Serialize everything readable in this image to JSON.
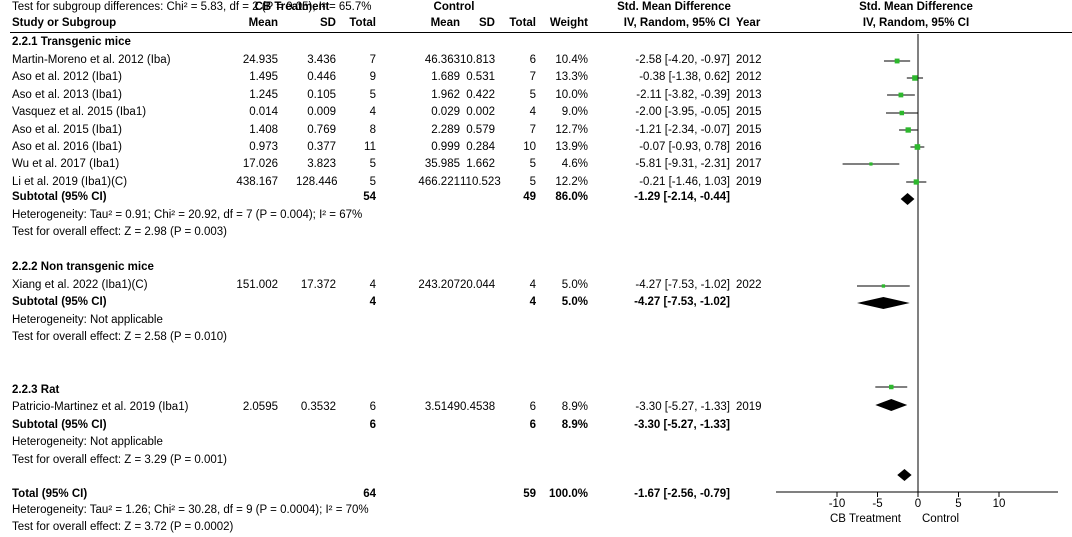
{
  "header": {
    "group_treatment": "CB Treatment",
    "group_control": "Control",
    "smd_title": "Std. Mean Difference",
    "col_study": "Study or Subgroup",
    "col_mean": "Mean",
    "col_sd": "SD",
    "col_total": "Total",
    "col_weight": "Weight",
    "col_method": "IV, Random, 95% CI",
    "col_year": "Year"
  },
  "rows": [
    {
      "kind": "subgroup",
      "label": "2.2.1 Transgenic mice"
    },
    {
      "kind": "study",
      "label": "Martin-Moreno et al. 2012 (Iba)",
      "t_mean": "24.935",
      "t_sd": "3.436",
      "t_total": "7",
      "c_mean": "46.363",
      "c_sd": "10.813",
      "c_total": "6",
      "weight": "10.4%",
      "ci": "-2.58 [-4.20, -0.97]",
      "year": "2012"
    },
    {
      "kind": "study",
      "label": "Aso et al. 2012 (Iba1)",
      "t_mean": "1.495",
      "t_sd": "0.446",
      "t_total": "9",
      "c_mean": "1.689",
      "c_sd": "0.531",
      "c_total": "7",
      "weight": "13.3%",
      "ci": "-0.38 [-1.38, 0.62]",
      "year": "2012"
    },
    {
      "kind": "study",
      "label": "Aso et al. 2013 (Iba1)",
      "t_mean": "1.245",
      "t_sd": "0.105",
      "t_total": "5",
      "c_mean": "1.962",
      "c_sd": "0.422",
      "c_total": "5",
      "weight": "10.0%",
      "ci": "-2.11 [-3.82, -0.39]",
      "year": "2013"
    },
    {
      "kind": "study",
      "label": "Vasquez et al. 2015 (Iba1)",
      "t_mean": "0.014",
      "t_sd": "0.009",
      "t_total": "4",
      "c_mean": "0.029",
      "c_sd": "0.002",
      "c_total": "4",
      "weight": "9.0%",
      "ci": "-2.00 [-3.95, -0.05]",
      "year": "2015"
    },
    {
      "kind": "study",
      "label": "Aso et al. 2015 (Iba1)",
      "t_mean": "1.408",
      "t_sd": "0.769",
      "t_total": "8",
      "c_mean": "2.289",
      "c_sd": "0.579",
      "c_total": "7",
      "weight": "12.7%",
      "ci": "-1.21 [-2.34, -0.07]",
      "year": "2015"
    },
    {
      "kind": "study",
      "label": "Aso et al. 2016 (Iba1)",
      "t_mean": "0.973",
      "t_sd": "0.377",
      "t_total": "11",
      "c_mean": "0.999",
      "c_sd": "0.284",
      "c_total": "10",
      "weight": "13.9%",
      "ci": "-0.07 [-0.93, 0.78]",
      "year": "2016"
    },
    {
      "kind": "study",
      "label": "Wu et al. 2017 (Iba1)",
      "t_mean": "17.026",
      "t_sd": "3.823",
      "t_total": "5",
      "c_mean": "35.985",
      "c_sd": "1.662",
      "c_total": "5",
      "weight": "4.6%",
      "ci": "-5.81 [-9.31, -2.31]",
      "year": "2017"
    },
    {
      "kind": "study",
      "label": "Li et al. 2019 (Iba1)(C)",
      "t_mean": "438.167",
      "t_sd": "128.446",
      "t_total": "5",
      "c_mean": "466.221",
      "c_sd": "110.523",
      "c_total": "5",
      "weight": "12.2%",
      "ci": "-0.21 [-1.46, 1.03]",
      "year": "2019"
    },
    {
      "kind": "subtotal",
      "label": "Subtotal (95% CI)",
      "t_total": "54",
      "c_total": "49",
      "weight": "86.0%",
      "ci": "-1.29 [-2.14, -0.44]"
    },
    {
      "kind": "note",
      "label": "Heterogeneity: Tau² = 0.91; Chi² = 20.92, df = 7 (P = 0.004); I² = 67%"
    },
    {
      "kind": "note",
      "label": "Test for overall effect: Z = 2.98 (P = 0.003)"
    },
    {
      "kind": "blank"
    },
    {
      "kind": "subgroup",
      "label": "2.2.2 Non transgenic mice"
    },
    {
      "kind": "study",
      "label": "Xiang et al. 2022 (Iba1)(C)",
      "t_mean": "151.002",
      "t_sd": "17.372",
      "t_total": "4",
      "c_mean": "243.207",
      "c_sd": "20.044",
      "c_total": "4",
      "weight": "5.0%",
      "ci": "-4.27 [-7.53, -1.02]",
      "year": "2022"
    },
    {
      "kind": "subtotal",
      "label": "Subtotal (95% CI)",
      "t_total": "4",
      "c_total": "4",
      "weight": "5.0%",
      "ci": "-4.27 [-7.53, -1.02]"
    },
    {
      "kind": "note",
      "label": "Heterogeneity: Not applicable"
    },
    {
      "kind": "note",
      "label": "Test for overall effect: Z = 2.58 (P = 0.010)"
    },
    {
      "kind": "blank"
    },
    {
      "kind": "subgroup",
      "label": "2.2.3 Rat"
    },
    {
      "kind": "study",
      "label": "Patricio-Martinez et al. 2019 (Iba1)",
      "t_mean": "2.0595",
      "t_sd": "0.3532",
      "t_total": "6",
      "c_mean": "3.5149",
      "c_sd": "0.4538",
      "c_total": "6",
      "weight": "8.9%",
      "ci": "-3.30 [-5.27, -1.33]",
      "year": "2019"
    },
    {
      "kind": "subtotal",
      "label": "Subtotal (95% CI)",
      "t_total": "6",
      "c_total": "6",
      "weight": "8.9%",
      "ci": "-3.30 [-5.27, -1.33]"
    },
    {
      "kind": "note",
      "label": "Heterogeneity: Not applicable"
    },
    {
      "kind": "note",
      "label": "Test for overall effect: Z = 3.29 (P = 0.001)"
    },
    {
      "kind": "blank"
    },
    {
      "kind": "total",
      "label": "Total (95% CI)",
      "t_total": "64",
      "c_total": "59",
      "weight": "100.0%",
      "ci": "-1.67 [-2.56, -0.79]"
    },
    {
      "kind": "note",
      "label": "Heterogeneity: Tau² = 1.26; Chi² = 30.28, df = 9 (P = 0.0004); I² = 70%"
    },
    {
      "kind": "note",
      "label": "Test for overall effect: Z = 3.72 (P = 0.0002)"
    },
    {
      "kind": "note",
      "label": "Test for subgroup differences: Chi² = 5.83, df = 2 (P = 0.05), I² = 65.7%"
    }
  ],
  "chart_data": {
    "type": "forest",
    "title": "Std. Mean Difference",
    "subtitle": "IV, Random, 95% CI",
    "xlim": [
      -10,
      10
    ],
    "ticks": [
      -10,
      -5,
      0,
      5,
      10
    ],
    "tick_labels": [
      "-10",
      "-5",
      "0",
      "5",
      "10"
    ],
    "left_label": "CB Treatment",
    "right_label": "Control",
    "grid": false,
    "marker_color": "#2db82d",
    "diamond_color": "#000000",
    "studies": [
      {
        "label": "Martin-Moreno et al. 2012 (Iba)",
        "est": -2.58,
        "lo": -4.2,
        "hi": -0.97,
        "weight": 10.4
      },
      {
        "label": "Aso et al. 2012 (Iba1)",
        "est": -0.38,
        "lo": -1.38,
        "hi": 0.62,
        "weight": 13.3
      },
      {
        "label": "Aso et al. 2013 (Iba1)",
        "est": -2.11,
        "lo": -3.82,
        "hi": -0.39,
        "weight": 10.0
      },
      {
        "label": "Vasquez et al. 2015 (Iba1)",
        "est": -2.0,
        "lo": -3.95,
        "hi": -0.05,
        "weight": 9.0
      },
      {
        "label": "Aso et al. 2015 (Iba1)",
        "est": -1.21,
        "lo": -2.34,
        "hi": -0.07,
        "weight": 12.7
      },
      {
        "label": "Aso et al. 2016 (Iba1)",
        "est": -0.07,
        "lo": -0.93,
        "hi": 0.78,
        "weight": 13.9
      },
      {
        "label": "Wu et al. 2017 (Iba1)",
        "est": -5.81,
        "lo": -9.31,
        "hi": -2.31,
        "weight": 4.6
      },
      {
        "label": "Li et al. 2019 (Iba1)(C)",
        "est": -0.21,
        "lo": -1.46,
        "hi": 1.03,
        "weight": 12.2
      },
      {
        "label": "Xiang et al. 2022 (Iba1)(C)",
        "est": -4.27,
        "lo": -7.53,
        "hi": -1.02,
        "weight": 5.0
      },
      {
        "label": "Patricio-Martinez et al. 2019 (Iba1)",
        "est": -3.3,
        "lo": -5.27,
        "hi": -1.33,
        "weight": 8.9
      }
    ],
    "summaries": [
      {
        "label": "Subtotal 2.2.1 Transgenic mice",
        "est": -1.29,
        "lo": -2.14,
        "hi": -0.44
      },
      {
        "label": "Subtotal 2.2.2 Non transgenic mice",
        "est": -4.27,
        "lo": -7.53,
        "hi": -1.02
      },
      {
        "label": "Subtotal 2.2.3 Rat",
        "est": -3.3,
        "lo": -5.27,
        "hi": -1.33
      },
      {
        "label": "Total (95% CI)",
        "est": -1.67,
        "lo": -2.56,
        "hi": -0.79
      }
    ]
  }
}
